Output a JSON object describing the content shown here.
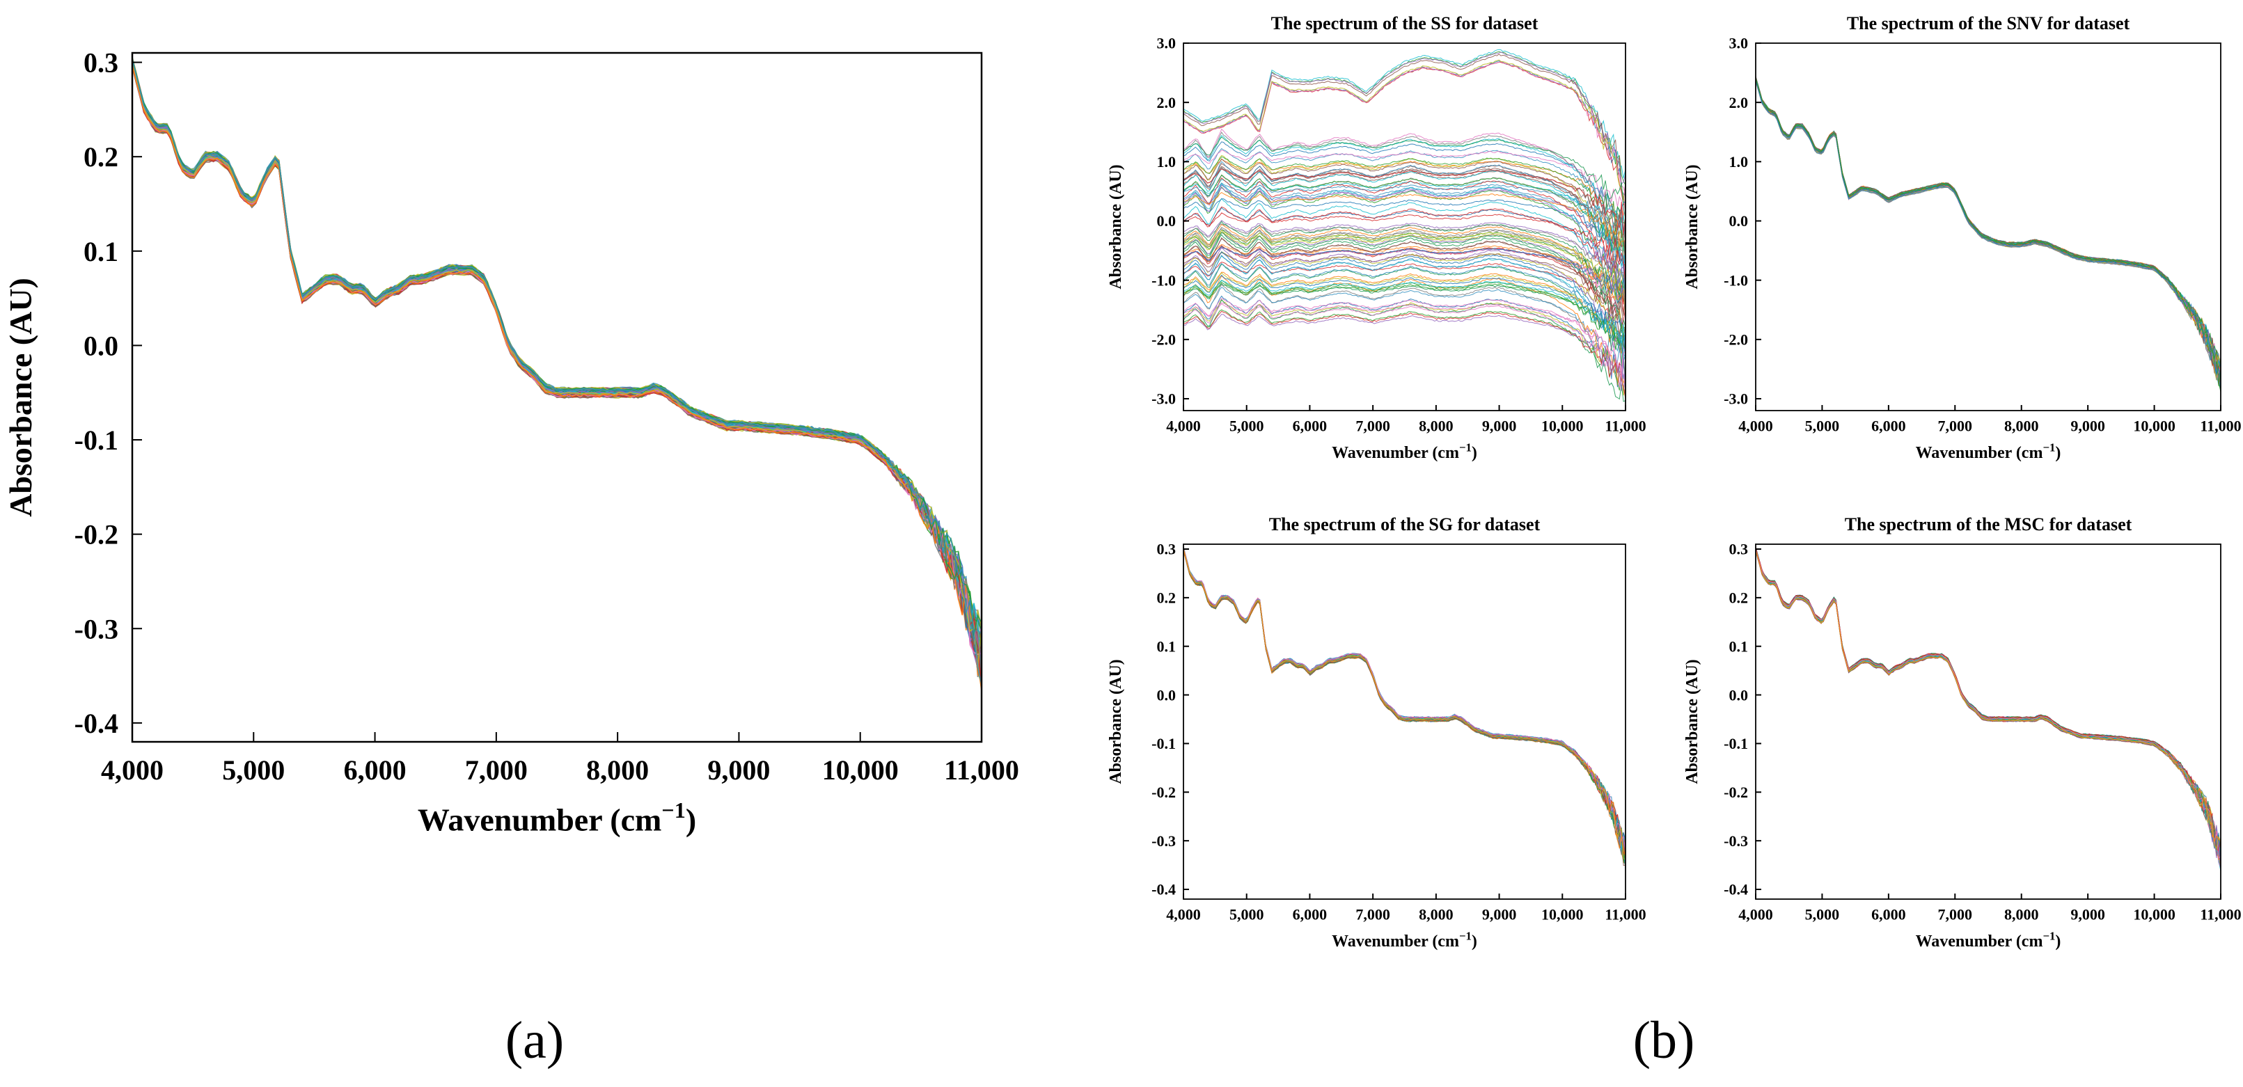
{
  "figure": {
    "panel_a_label": "(a)",
    "panel_b_label": "(b)"
  },
  "palette": [
    "#1f77b4",
    "#2ca02c",
    "#17becf",
    "#d62728",
    "#9467bd",
    "#8c564b",
    "#e377c2",
    "#bcbd22",
    "#ff7f0e",
    "#7f7f7f",
    "#1a9850",
    "#3690c0"
  ],
  "chart_data": [
    {
      "id": "a",
      "type": "line",
      "title": "",
      "xlabel": "Wavenumber (cm",
      "xlabel_sup": "−1",
      "xlabel_close": ")",
      "ylabel": "Absorbance (AU)",
      "xlim": [
        4000,
        11000
      ],
      "ylim": [
        -0.42,
        0.31
      ],
      "xticks": [
        4000,
        5000,
        6000,
        7000,
        8000,
        9000,
        10000,
        11000
      ],
      "xtick_labels": [
        "4,000",
        "5,000",
        "6,000",
        "7,000",
        "8,000",
        "9,000",
        "10,000",
        "11,000"
      ],
      "yticks": [
        0.3,
        0.2,
        0.1,
        0.0,
        -0.1,
        -0.2,
        -0.3,
        -0.4
      ],
      "ytick_labels": [
        "0.3",
        "0.2",
        "0.1",
        "0.0",
        "-0.1",
        "-0.2",
        "-0.3",
        "-0.4"
      ],
      "curve": {
        "x": [
          4000,
          4100,
          4200,
          4300,
          4400,
          4500,
          4600,
          4700,
          4800,
          4900,
          5000,
          5100,
          5200,
          5300,
          5400,
          5500,
          5600,
          5700,
          5800,
          5900,
          6000,
          6100,
          6200,
          6300,
          6400,
          6500,
          6600,
          6700,
          6800,
          6900,
          7000,
          7100,
          7200,
          7300,
          7400,
          7500,
          7600,
          7700,
          7800,
          7900,
          8000,
          8100,
          8200,
          8300,
          8400,
          8500,
          8600,
          8700,
          8800,
          8900,
          9000,
          9500,
          9800,
          10000,
          10200,
          10400,
          10600,
          10800,
          11000
        ],
        "y": [
          0.3,
          0.25,
          0.23,
          0.23,
          0.19,
          0.18,
          0.2,
          0.2,
          0.19,
          0.16,
          0.15,
          0.18,
          0.2,
          0.1,
          0.05,
          0.06,
          0.07,
          0.07,
          0.06,
          0.06,
          0.045,
          0.055,
          0.06,
          0.07,
          0.07,
          0.075,
          0.08,
          0.08,
          0.08,
          0.07,
          0.04,
          0.0,
          -0.02,
          -0.03,
          -0.045,
          -0.05,
          -0.05,
          -0.05,
          -0.05,
          -0.05,
          -0.05,
          -0.05,
          -0.05,
          -0.045,
          -0.05,
          -0.06,
          -0.07,
          -0.075,
          -0.08,
          -0.085,
          -0.085,
          -0.09,
          -0.095,
          -0.1,
          -0.12,
          -0.15,
          -0.19,
          -0.24,
          -0.33
        ]
      },
      "series_count": 60
    },
    {
      "id": "ss",
      "type": "line",
      "title": "The spectrum of the SS for dataset",
      "xlabel": "Wavenumber (cm",
      "xlabel_sup": "−1",
      "xlabel_close": ")",
      "ylabel": "Absorbance (AU)",
      "xlim": [
        4000,
        11000
      ],
      "ylim": [
        -3.2,
        3.0
      ],
      "xticks": [
        4000,
        5000,
        6000,
        7000,
        8000,
        9000,
        10000,
        11000
      ],
      "xtick_labels": [
        "4,000",
        "5,000",
        "6,000",
        "7,000",
        "8,000",
        "9,000",
        "10,000",
        "11,000"
      ],
      "yticks": [
        3.0,
        2.0,
        1.0,
        0.0,
        -1.0,
        -2.0,
        -3.0
      ],
      "ytick_labels": [
        "3.0",
        "2.0",
        "1.0",
        "0.0",
        "-1.0",
        "-2.0",
        "-3.0"
      ],
      "curve": {
        "x": [
          4000,
          4200,
          4400,
          4600,
          4800,
          5000,
          5200,
          5400,
          5600,
          5800,
          6000,
          6200,
          6400,
          6600,
          6800,
          7000,
          7200,
          7400,
          7600,
          7800,
          8000,
          8200,
          8400,
          8600,
          8800,
          9000,
          9200,
          9400,
          9600,
          9800,
          10000,
          10200,
          10400,
          10600,
          10800,
          11000
        ],
        "y": [
          0.0,
          0.15,
          -0.1,
          0.25,
          0.1,
          0.0,
          0.2,
          0.0,
          0.05,
          0.1,
          0.05,
          0.1,
          0.15,
          0.15,
          0.1,
          0.05,
          0.1,
          0.15,
          0.2,
          0.15,
          0.1,
          0.1,
          0.1,
          0.15,
          0.2,
          0.2,
          0.15,
          0.1,
          0.05,
          0.0,
          -0.1,
          -0.2,
          -0.4,
          -0.6,
          -0.8,
          -1.0
        ]
      },
      "series_count": 90,
      "offset_range": [
        -1.8,
        1.2
      ],
      "high_band": {
        "x": [
          4000,
          4300,
          4600,
          5000,
          5200,
          5400,
          5700,
          6000,
          6300,
          6600,
          6900,
          7200,
          7500,
          7800,
          8100,
          8400,
          8700,
          9000,
          9300,
          9600,
          9900,
          10200,
          10500,
          10800,
          11000
        ],
        "y": [
          1.8,
          1.6,
          1.7,
          1.9,
          1.6,
          2.45,
          2.3,
          2.3,
          2.35,
          2.3,
          2.1,
          2.4,
          2.6,
          2.7,
          2.65,
          2.55,
          2.7,
          2.8,
          2.7,
          2.55,
          2.45,
          2.3,
          1.8,
          1.2,
          0.5
        ]
      }
    },
    {
      "id": "snv",
      "type": "line",
      "title": "The spectrum of the SNV for dataset",
      "xlabel": "Wavenumber (cm",
      "xlabel_sup": "−1",
      "xlabel_close": ")",
      "ylabel": "Absorbance (AU)",
      "xlim": [
        4000,
        11000
      ],
      "ylim": [
        -3.2,
        3.0
      ],
      "xticks": [
        4000,
        5000,
        6000,
        7000,
        8000,
        9000,
        10000,
        11000
      ],
      "xtick_labels": [
        "4,000",
        "5,000",
        "6,000",
        "7,000",
        "8,000",
        "9,000",
        "10,000",
        "11,000"
      ],
      "yticks": [
        3.0,
        2.0,
        1.0,
        0.0,
        -1.0,
        -2.0,
        -3.0
      ],
      "ytick_labels": [
        "3.0",
        "2.0",
        "1.0",
        "0.0",
        "-1.0",
        "-2.0",
        "-3.0"
      ],
      "curve": {
        "x": [
          4000,
          4100,
          4200,
          4300,
          4400,
          4500,
          4600,
          4700,
          4800,
          4900,
          5000,
          5100,
          5200,
          5300,
          5400,
          5600,
          5800,
          6000,
          6200,
          6400,
          6600,
          6800,
          6900,
          7000,
          7200,
          7400,
          7600,
          7800,
          8000,
          8200,
          8400,
          8600,
          8800,
          9000,
          9500,
          9800,
          10000,
          10200,
          10400,
          10600,
          10800,
          11000
        ],
        "y": [
          2.4,
          2.0,
          1.85,
          1.8,
          1.5,
          1.4,
          1.6,
          1.6,
          1.45,
          1.2,
          1.15,
          1.4,
          1.5,
          0.8,
          0.4,
          0.55,
          0.5,
          0.35,
          0.45,
          0.5,
          0.55,
          0.6,
          0.6,
          0.5,
          0.0,
          -0.25,
          -0.35,
          -0.4,
          -0.4,
          -0.35,
          -0.4,
          -0.5,
          -0.6,
          -0.65,
          -0.7,
          -0.75,
          -0.8,
          -1.0,
          -1.3,
          -1.6,
          -2.0,
          -2.6
        ]
      },
      "series_count": 50
    },
    {
      "id": "sg",
      "type": "line",
      "title": "The spectrum of the SG for dataset",
      "xlabel": "Wavenumber (cm",
      "xlabel_sup": "−1",
      "xlabel_close": ")",
      "ylabel": "Absorbance (AU)",
      "xlim": [
        4000,
        11000
      ],
      "ylim": [
        -0.42,
        0.31
      ],
      "xticks": [
        4000,
        5000,
        6000,
        7000,
        8000,
        9000,
        10000,
        11000
      ],
      "xtick_labels": [
        "4,000",
        "5,000",
        "6,000",
        "7,000",
        "8,000",
        "9,000",
        "10,000",
        "11,000"
      ],
      "yticks": [
        0.3,
        0.2,
        0.1,
        0.0,
        -0.1,
        -0.2,
        -0.3,
        -0.4
      ],
      "ytick_labels": [
        "0.3",
        "0.2",
        "0.1",
        "0.0",
        "-0.1",
        "-0.2",
        "-0.3",
        "-0.4"
      ],
      "curve": {
        "x": [
          4000,
          4100,
          4200,
          4300,
          4400,
          4500,
          4600,
          4700,
          4800,
          4900,
          5000,
          5100,
          5200,
          5300,
          5400,
          5500,
          5600,
          5700,
          5800,
          5900,
          6000,
          6100,
          6200,
          6300,
          6400,
          6500,
          6600,
          6700,
          6800,
          6900,
          7000,
          7100,
          7200,
          7300,
          7400,
          7500,
          7600,
          7700,
          7800,
          7900,
          8000,
          8100,
          8200,
          8300,
          8400,
          8500,
          8600,
          8700,
          8800,
          8900,
          9000,
          9500,
          9800,
          10000,
          10200,
          10400,
          10600,
          10800,
          11000
        ],
        "y": [
          0.3,
          0.25,
          0.23,
          0.23,
          0.19,
          0.18,
          0.2,
          0.2,
          0.19,
          0.16,
          0.15,
          0.18,
          0.2,
          0.1,
          0.05,
          0.06,
          0.07,
          0.07,
          0.06,
          0.06,
          0.045,
          0.055,
          0.06,
          0.07,
          0.07,
          0.075,
          0.08,
          0.08,
          0.08,
          0.07,
          0.04,
          0.0,
          -0.02,
          -0.03,
          -0.045,
          -0.05,
          -0.05,
          -0.05,
          -0.05,
          -0.05,
          -0.05,
          -0.05,
          -0.05,
          -0.045,
          -0.05,
          -0.06,
          -0.07,
          -0.075,
          -0.08,
          -0.085,
          -0.085,
          -0.09,
          -0.095,
          -0.1,
          -0.12,
          -0.15,
          -0.19,
          -0.24,
          -0.33
        ]
      },
      "series_count": 45
    },
    {
      "id": "msc",
      "type": "line",
      "title": "The spectrum of the MSC for dataset",
      "xlabel": "Wavenumber (cm",
      "xlabel_sup": "−1",
      "xlabel_close": ")",
      "ylabel": "Absorbance (AU)",
      "xlim": [
        4000,
        11000
      ],
      "ylim": [
        -0.42,
        0.31
      ],
      "xticks": [
        4000,
        5000,
        6000,
        7000,
        8000,
        9000,
        10000,
        11000
      ],
      "xtick_labels": [
        "4,000",
        "5,000",
        "6,000",
        "7,000",
        "8,000",
        "9,000",
        "10,000",
        "11,000"
      ],
      "yticks": [
        0.3,
        0.2,
        0.1,
        0.0,
        -0.1,
        -0.2,
        -0.3,
        -0.4
      ],
      "ytick_labels": [
        "0.3",
        "0.2",
        "0.1",
        "0.0",
        "-0.1",
        "-0.2",
        "-0.3",
        "-0.4"
      ],
      "curve": {
        "x": [
          4000,
          4100,
          4200,
          4300,
          4400,
          4500,
          4600,
          4700,
          4800,
          4900,
          5000,
          5100,
          5200,
          5300,
          5400,
          5500,
          5600,
          5700,
          5800,
          5900,
          6000,
          6100,
          6200,
          6300,
          6400,
          6500,
          6600,
          6700,
          6800,
          6900,
          7000,
          7100,
          7200,
          7300,
          7400,
          7500,
          7600,
          7700,
          7800,
          7900,
          8000,
          8100,
          8200,
          8300,
          8400,
          8500,
          8600,
          8700,
          8800,
          8900,
          9000,
          9500,
          9800,
          10000,
          10200,
          10400,
          10600,
          10800,
          11000
        ],
        "y": [
          0.3,
          0.25,
          0.23,
          0.23,
          0.19,
          0.18,
          0.2,
          0.2,
          0.19,
          0.16,
          0.15,
          0.18,
          0.2,
          0.1,
          0.05,
          0.06,
          0.07,
          0.07,
          0.06,
          0.06,
          0.045,
          0.055,
          0.06,
          0.07,
          0.07,
          0.075,
          0.08,
          0.08,
          0.08,
          0.07,
          0.04,
          0.0,
          -0.02,
          -0.03,
          -0.045,
          -0.05,
          -0.05,
          -0.05,
          -0.05,
          -0.05,
          -0.05,
          -0.05,
          -0.05,
          -0.045,
          -0.05,
          -0.06,
          -0.07,
          -0.075,
          -0.08,
          -0.085,
          -0.085,
          -0.09,
          -0.095,
          -0.1,
          -0.12,
          -0.15,
          -0.19,
          -0.24,
          -0.33
        ]
      },
      "series_count": 45
    }
  ]
}
